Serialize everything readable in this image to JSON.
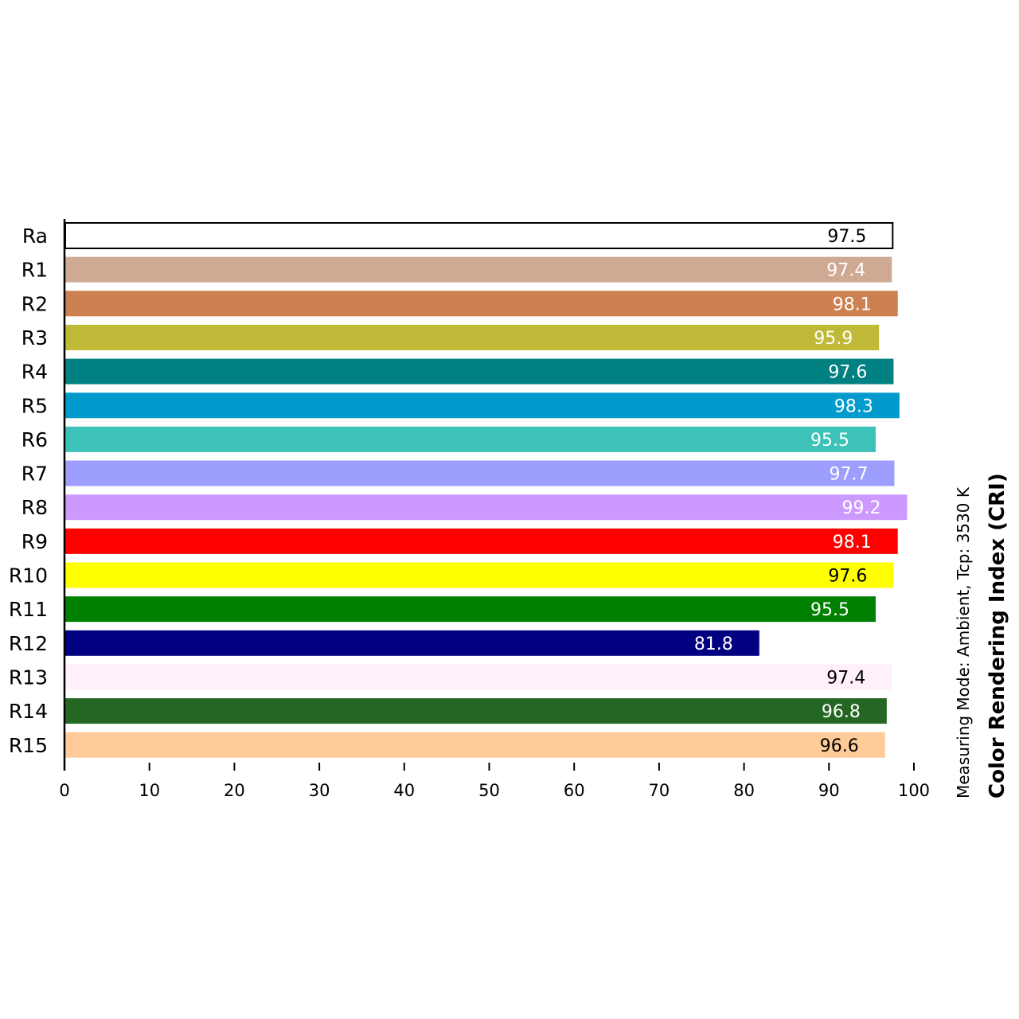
{
  "chart_data": {
    "type": "bar",
    "orientation": "horizontal",
    "title": "Color Rendering Index (CRI)",
    "subtitle": "Measuring Mode: Ambient, Tcp: 3530 K",
    "xlim": [
      0,
      100
    ],
    "x_ticks": [
      "0",
      "10",
      "20",
      "30",
      "40",
      "50",
      "60",
      "70",
      "80",
      "90",
      "100"
    ],
    "grid": false,
    "categories": [
      "Ra",
      "R1",
      "R2",
      "R3",
      "R4",
      "R5",
      "R6",
      "R7",
      "R8",
      "R9",
      "R10",
      "R11",
      "R12",
      "R13",
      "R14",
      "R15"
    ],
    "values": [
      97.5,
      97.4,
      98.1,
      95.9,
      97.6,
      98.3,
      95.5,
      97.7,
      99.2,
      98.1,
      97.6,
      95.5,
      81.8,
      97.4,
      96.8,
      96.6
    ],
    "value_labels": [
      "97.5",
      "97.4",
      "98.1",
      "95.9",
      "97.6",
      "98.3",
      "95.5",
      "97.7",
      "99.2",
      "98.1",
      "97.6",
      "95.5",
      "81.8",
      "97.4",
      "96.8",
      "96.6"
    ],
    "bar_colors": [
      "#ffffff",
      "#cfa994",
      "#cd8150",
      "#c0b937",
      "#008080",
      "#009acd",
      "#3cc2b8",
      "#9e9eff",
      "#cc99ff",
      "#ff0000",
      "#ffff00",
      "#008000",
      "#000080",
      "#fff0fc",
      "#236723",
      "#ffcb98"
    ],
    "label_colors": [
      "#000000",
      "#ffffff",
      "#ffffff",
      "#ffffff",
      "#ffffff",
      "#ffffff",
      "#ffffff",
      "#ffffff",
      "#ffffff",
      "#ffffff",
      "#000000",
      "#ffffff",
      "#ffffff",
      "#000000",
      "#ffffff",
      "#000000"
    ],
    "bar_outlines": [
      "#000000",
      null,
      null,
      null,
      null,
      null,
      null,
      null,
      null,
      null,
      null,
      null,
      null,
      null,
      null,
      null
    ]
  }
}
